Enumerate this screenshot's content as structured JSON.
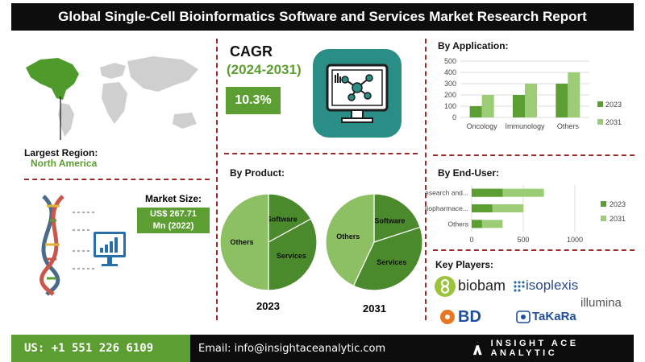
{
  "header": {
    "title": "Global Single-Cell Bioinformatics Software and Services Market Research Report"
  },
  "region": {
    "label": "Largest Region:",
    "value": "North America"
  },
  "cagr": {
    "title": "CAGR",
    "years": "(2024-2031)",
    "value": "10.3%"
  },
  "market_size": {
    "label": "Market Size:",
    "line1": "US$ 267.71",
    "line2": "Mn (2022)"
  },
  "colors": {
    "accent_green": "#5c9e31",
    "light_green": "#9ccc76",
    "teal": "#2a8d86",
    "pie_dark": "#4a8a2c",
    "pie_light": "#8cc063"
  },
  "chart_data": [
    {
      "type": "bar",
      "title": "By Application:",
      "categories": [
        "Oncology",
        "Immunology",
        "Others"
      ],
      "series": [
        {
          "name": "2023",
          "values": [
            100,
            200,
            300
          ]
        },
        {
          "name": "2031",
          "values": [
            200,
            300,
            400
          ]
        }
      ],
      "ylim": [
        0,
        500
      ],
      "yticks": [
        "0",
        "100",
        "200",
        "300",
        "400",
        "500"
      ],
      "legend": "right"
    },
    {
      "type": "bar",
      "orientation": "horizontal",
      "title": "By End-User:",
      "categories": [
        "Research and...",
        "Biopharmace...",
        "Others"
      ],
      "series": [
        {
          "name": "2023",
          "values": [
            300,
            200,
            100
          ]
        },
        {
          "name": "2031",
          "values": [
            700,
            500,
            300
          ]
        }
      ],
      "xlim": [
        0,
        1000
      ],
      "xticks": [
        "0",
        "500",
        "1000"
      ],
      "legend": "right"
    },
    {
      "type": "pie",
      "title": "By Product:",
      "year": "2023",
      "labels": [
        "Software",
        "Services",
        "Others"
      ],
      "values": [
        17,
        33,
        50
      ]
    },
    {
      "type": "pie",
      "year": "2031",
      "labels": [
        "Software",
        "Services",
        "Others"
      ],
      "values": [
        20,
        37,
        43
      ]
    }
  ],
  "key_players": {
    "title": "Key Players:",
    "names": [
      "biobam",
      "isoplexis",
      "illumina",
      "BD",
      "TaKaRa"
    ]
  },
  "footer": {
    "phone": "US: +1 551 226 6109",
    "email": "Email: info@insightaceanalytic.com",
    "brand": "INSIGHT ACE ANALYTIC"
  }
}
